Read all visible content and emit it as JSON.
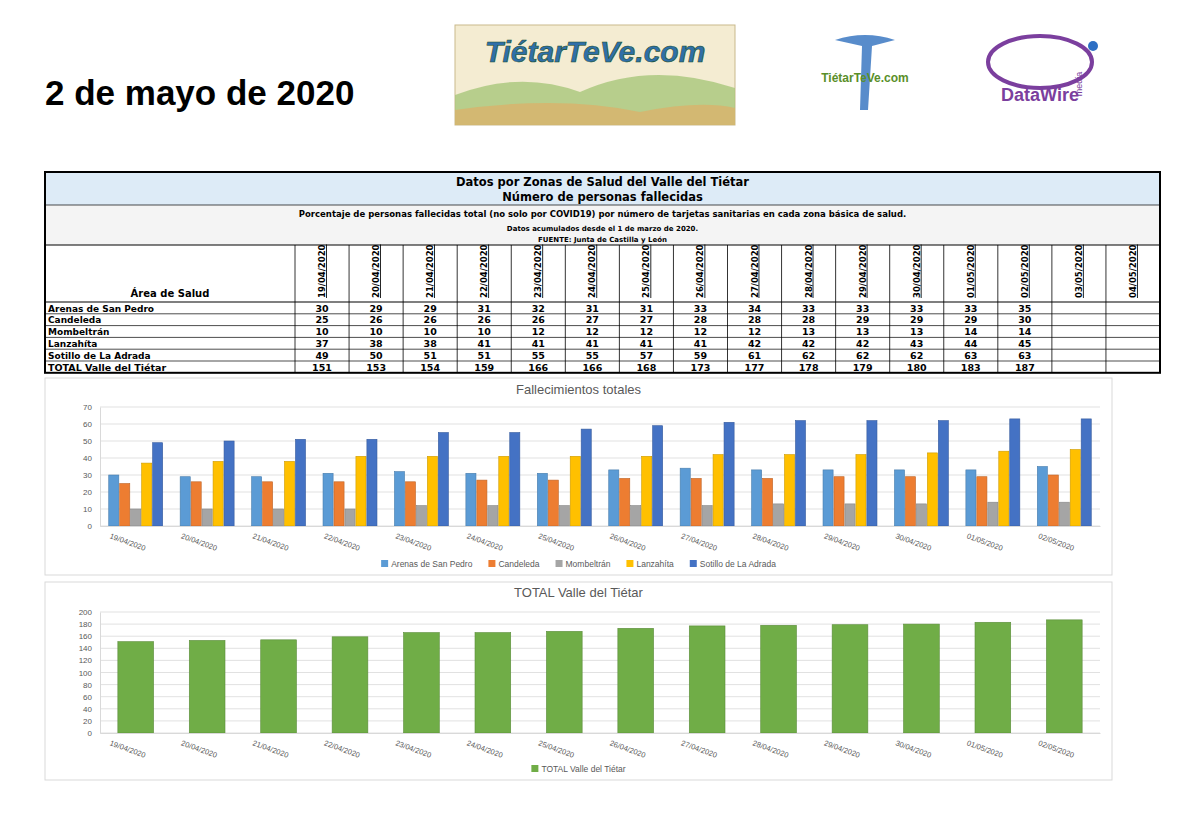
{
  "header": {
    "date": "2 de mayo de 2020",
    "logos": [
      "TiétarTeVe.com",
      "TiétarTeVe.com",
      "DataWire",
      "media"
    ]
  },
  "table": {
    "title": "Datos por Zonas de Salud del Valle del Tiétar",
    "subtitle": "Número de personas fallecidas",
    "notes": [
      "Porcentaje de personas fallecidas total (no solo por COVID19) por número de tarjetas sanitarias en cada zona básica de salud.",
      "Datos acumulados desde el 1 de marzo de 2020."
    ],
    "source": "FUENTE: Junta de Castilla y León",
    "row_header": "Área de Salud",
    "columns": [
      "19/04/2020",
      "20/04/2020",
      "21/04/2020",
      "22/04/2020",
      "23/04/2020",
      "24/04/2020",
      "25/04/2020",
      "26/04/2020",
      "27/04/2020",
      "28/04/2020",
      "29/04/2020",
      "30/04/2020",
      "01/05/2020",
      "02/05/2020",
      "03/05/2020",
      "04/05/2020"
    ],
    "rows": [
      {
        "name": "Arenas de San Pedro",
        "values": [
          30,
          29,
          29,
          31,
          32,
          31,
          31,
          33,
          34,
          33,
          33,
          33,
          33,
          35,
          null,
          null
        ]
      },
      {
        "name": "Candeleda",
        "values": [
          25,
          26,
          26,
          26,
          26,
          27,
          27,
          28,
          28,
          28,
          29,
          29,
          29,
          30,
          null,
          null
        ]
      },
      {
        "name": "Mombeltrán",
        "values": [
          10,
          10,
          10,
          10,
          12,
          12,
          12,
          12,
          12,
          13,
          13,
          13,
          14,
          14,
          null,
          null
        ]
      },
      {
        "name": "Lanzahíta",
        "values": [
          37,
          38,
          38,
          41,
          41,
          41,
          41,
          41,
          42,
          42,
          42,
          43,
          44,
          45,
          null,
          null
        ]
      },
      {
        "name": "Sotillo de La Adrada",
        "values": [
          49,
          50,
          51,
          51,
          55,
          55,
          57,
          59,
          61,
          62,
          62,
          62,
          63,
          63,
          null,
          null
        ]
      },
      {
        "name": "TOTAL Valle del Tiétar",
        "values": [
          151,
          153,
          154,
          159,
          166,
          166,
          168,
          173,
          177,
          178,
          179,
          180,
          183,
          187,
          null,
          null
        ]
      }
    ]
  },
  "chart_data": [
    {
      "type": "bar",
      "title": "Fallecimientos totales",
      "categories": [
        "19/04/2020",
        "20/04/2020",
        "21/04/2020",
        "22/04/2020",
        "23/04/2020",
        "24/04/2020",
        "25/04/2020",
        "26/04/2020",
        "27/04/2020",
        "28/04/2020",
        "29/04/2020",
        "30/04/2020",
        "01/05/2020",
        "02/05/2020"
      ],
      "series": [
        {
          "name": "Arenas de San Pedro",
          "color": "#5b9bd5",
          "values": [
            30,
            29,
            29,
            31,
            32,
            31,
            31,
            33,
            34,
            33,
            33,
            33,
            33,
            35
          ]
        },
        {
          "name": "Candeleda",
          "color": "#ed7d31",
          "values": [
            25,
            26,
            26,
            26,
            26,
            27,
            27,
            28,
            28,
            28,
            29,
            29,
            29,
            30
          ]
        },
        {
          "name": "Mombeltrán",
          "color": "#a5a5a5",
          "values": [
            10,
            10,
            10,
            10,
            12,
            12,
            12,
            12,
            12,
            13,
            13,
            13,
            14,
            14
          ]
        },
        {
          "name": "Lanzahíta",
          "color": "#ffc000",
          "values": [
            37,
            38,
            38,
            41,
            41,
            41,
            41,
            41,
            42,
            42,
            42,
            43,
            44,
            45
          ]
        },
        {
          "name": "Sotillo de La Adrada",
          "color": "#4472c4",
          "values": [
            49,
            50,
            51,
            51,
            55,
            55,
            57,
            59,
            61,
            62,
            62,
            62,
            63,
            63
          ]
        }
      ],
      "ylim": [
        0,
        70
      ],
      "yticks": [
        0,
        10,
        20,
        30,
        40,
        50,
        60,
        70
      ],
      "grid": true,
      "legend": "bottom"
    },
    {
      "type": "bar",
      "title": "TOTAL Valle del Tiétar",
      "categories": [
        "19/04/2020",
        "20/04/2020",
        "21/04/2020",
        "22/04/2020",
        "23/04/2020",
        "24/04/2020",
        "25/04/2020",
        "26/04/2020",
        "27/04/2020",
        "28/04/2020",
        "29/04/2020",
        "30/04/2020",
        "01/05/2020",
        "02/05/2020"
      ],
      "series": [
        {
          "name": "TOTAL Valle del Tiétar",
          "color": "#70ad47",
          "values": [
            151,
            153,
            154,
            159,
            166,
            166,
            168,
            173,
            177,
            178,
            179,
            180,
            183,
            187
          ]
        }
      ],
      "ylim": [
        0,
        200
      ],
      "yticks": [
        0,
        20,
        40,
        60,
        80,
        100,
        120,
        140,
        160,
        180,
        200
      ],
      "grid": true,
      "legend": "bottom"
    }
  ]
}
